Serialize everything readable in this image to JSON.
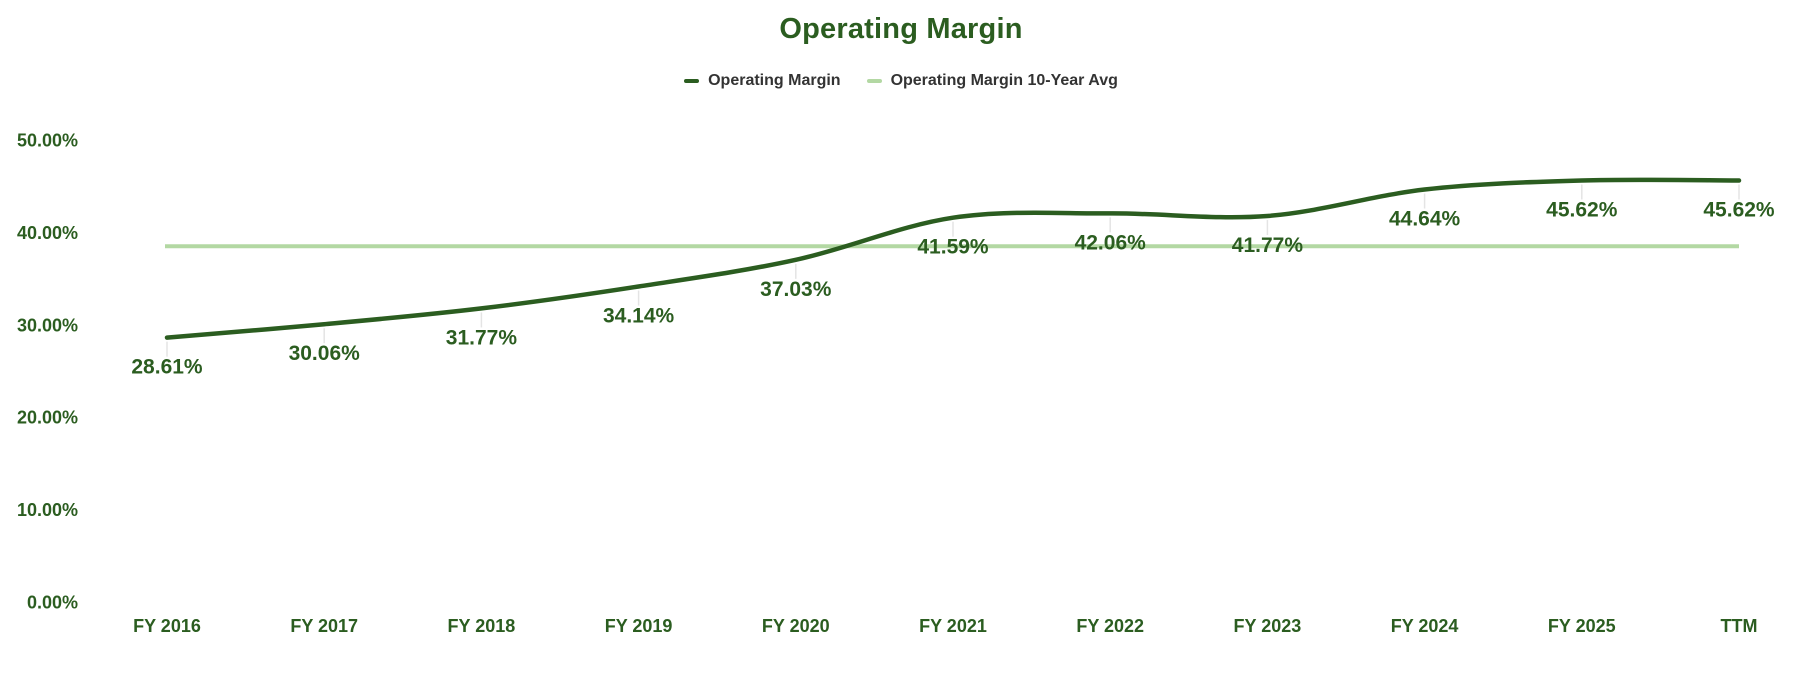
{
  "header": {
    "title": "Operating Margin"
  },
  "legend": {
    "items": [
      {
        "label": "Operating Margin",
        "color": "#2b5d20"
      },
      {
        "label": "Operating Margin 10-Year Avg",
        "color": "#b3d8a3"
      }
    ]
  },
  "colors": {
    "accent_green": "#2b5d20",
    "light_green": "#b3d8a3",
    "legend_text": "#333333",
    "tick_gray": "#e4e4e4",
    "background": "#ffffff"
  },
  "chart_data": {
    "type": "line",
    "title": "Operating Margin",
    "categories": [
      "FY 2016",
      "FY 2017",
      "FY 2018",
      "FY 2019",
      "FY 2020",
      "FY 2021",
      "FY 2022",
      "FY 2023",
      "FY 2024",
      "FY 2025",
      "TTM"
    ],
    "series": [
      {
        "name": "Operating Margin",
        "type": "smooth-line",
        "color": "#2b5d20",
        "values": [
          28.61,
          30.06,
          31.77,
          34.14,
          37.03,
          41.59,
          42.06,
          41.77,
          44.64,
          45.62,
          45.62
        ],
        "labels": [
          "28.61%",
          "30.06%",
          "31.77%",
          "34.14%",
          "37.03%",
          "41.59%",
          "42.06%",
          "41.77%",
          "44.64%",
          "45.62%",
          "45.62%"
        ]
      },
      {
        "name": "Operating Margin 10-Year Avg",
        "type": "hline",
        "color": "#b3d8a3",
        "value": 38.5,
        "value_estimated_from_gridlines": true
      }
    ],
    "y_axis": {
      "min": 0,
      "max": 50,
      "tick_step": 10,
      "tick_labels": [
        "0.00%",
        "10.00%",
        "20.00%",
        "30.00%",
        "40.00%",
        "50.00%"
      ]
    },
    "x_axis": {
      "label": ""
    },
    "grid": "none",
    "legend_position": "top",
    "data_label_position": "below-point"
  }
}
